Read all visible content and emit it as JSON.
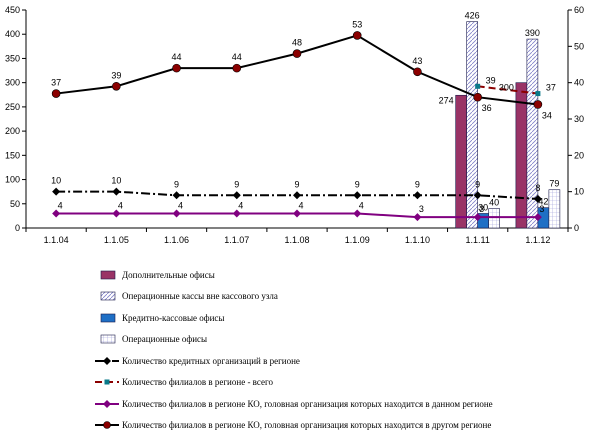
{
  "chart_data": {
    "type": "bar+line",
    "categories": [
      "1.1.04",
      "1.1.05",
      "1.1.06",
      "1.1.07",
      "1.1.08",
      "1.1.09",
      "1.1.10",
      "1.1.11",
      "1.1.12"
    ],
    "y_left": {
      "range": [
        0,
        450
      ],
      "ticks": [
        0,
        50,
        100,
        150,
        200,
        250,
        300,
        350,
        400,
        450
      ]
    },
    "y_right": {
      "range": [
        0,
        60
      ],
      "ticks": [
        0,
        10,
        20,
        30,
        40,
        50,
        60
      ]
    },
    "grid": false,
    "legend_placement": "bottom",
    "series": [
      {
        "name": "Дополнительные офисы",
        "kind": "bar",
        "axis": "left",
        "color": "#993366",
        "values": [
          null,
          null,
          null,
          null,
          null,
          null,
          null,
          274,
          300
        ],
        "labels": [
          null,
          null,
          null,
          null,
          null,
          null,
          null,
          "274",
          "300"
        ]
      },
      {
        "name": "Операционные кассы вне кассового узла",
        "kind": "bar",
        "axis": "left",
        "color": "#9999ff",
        "pattern": "hatch",
        "values": [
          null,
          null,
          null,
          null,
          null,
          null,
          null,
          426,
          390
        ],
        "labels": [
          null,
          null,
          null,
          null,
          null,
          null,
          null,
          "426",
          "390"
        ]
      },
      {
        "name": "Кредитно-кассовые офисы",
        "kind": "bar",
        "axis": "left",
        "color": "#1f6fc5",
        "values": [
          null,
          null,
          null,
          null,
          null,
          null,
          null,
          30,
          42
        ],
        "labels": [
          null,
          null,
          null,
          null,
          null,
          null,
          null,
          "30",
          "42"
        ]
      },
      {
        "name": "Операционные офисы",
        "kind": "bar",
        "axis": "left",
        "color": "#ccccff",
        "pattern": "grid",
        "values": [
          null,
          null,
          null,
          null,
          null,
          null,
          null,
          40,
          79
        ],
        "labels": [
          null,
          null,
          null,
          null,
          null,
          null,
          null,
          "40",
          "79"
        ]
      },
      {
        "name": "Количество кредитных организаций в регионе",
        "kind": "line",
        "axis": "right",
        "color": "#000000",
        "style": "dashdot",
        "marker": "diamond",
        "values": [
          10,
          10,
          9,
          9,
          9,
          9,
          9,
          9,
          8
        ],
        "labels": [
          "10",
          "10",
          "9",
          "9",
          "9",
          "9",
          "9",
          "9",
          "8"
        ]
      },
      {
        "name": "Количество филиалов в регионе -  всего",
        "kind": "line",
        "axis": "right",
        "color": "#8b0000",
        "style": "dashed",
        "marker": "square",
        "values": [
          null,
          null,
          null,
          null,
          null,
          null,
          null,
          39,
          37
        ],
        "labels": [
          null,
          null,
          null,
          null,
          null,
          null,
          null,
          "39",
          "37"
        ]
      },
      {
        "name": "Количество филиалов в регионе КО, головная организация которых находится в данном регионе",
        "kind": "line",
        "axis": "right",
        "color": "#800080",
        "style": "solid",
        "marker": "diamond",
        "values": [
          4,
          4,
          4,
          4,
          4,
          4,
          3,
          3,
          3
        ],
        "labels": [
          "4",
          "4",
          "4",
          "4",
          "4",
          "4",
          "3",
          "3",
          "3"
        ]
      },
      {
        "name": "Количество филиалов в регионе КО, головная организация которых находится в другом регионе",
        "kind": "line",
        "axis": "right",
        "color": "#000000",
        "style": "solid",
        "marker": "circle",
        "marker_color": "#8b0000",
        "values": [
          37,
          39,
          44,
          44,
          48,
          53,
          43,
          36,
          34
        ],
        "labels": [
          "37",
          "39",
          "44",
          "44",
          "48",
          "53",
          "43",
          "36",
          "34"
        ]
      }
    ]
  }
}
